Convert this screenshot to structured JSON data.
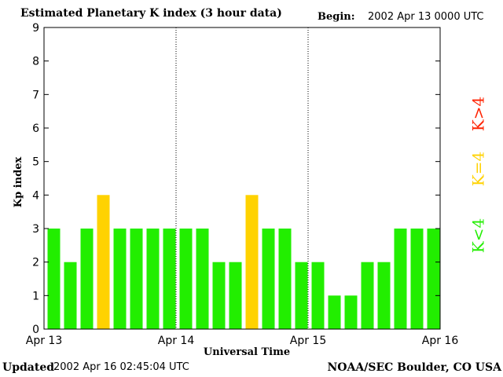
{
  "header": {
    "title": "Estimated Planetary K index (3 hour data)",
    "begin_label": "Begin:",
    "begin_value": "2002 Apr 13 0000 UTC"
  },
  "footer": {
    "updated_label": "Updated",
    "updated_value": "2002 Apr 16 02:45:04 UTC",
    "credit": "NOAA/SEC Boulder, CO USA"
  },
  "legend": [
    {
      "label": "K<4",
      "color": "#22ee00"
    },
    {
      "label": "K=4",
      "color": "#ffd200"
    },
    {
      "label": "K>4",
      "color": "#ff2200"
    }
  ],
  "chart_data": {
    "type": "bar",
    "title": "Estimated Planetary K index (3 hour data)",
    "xlabel": "Universal Time",
    "ylabel": "Kp index",
    "ylim": [
      0,
      9
    ],
    "yticks": [
      0,
      1,
      2,
      3,
      4,
      5,
      6,
      7,
      8,
      9
    ],
    "x_tick_labels": [
      "Apr 13",
      "Apr 14",
      "Apr 15",
      "Apr 16"
    ],
    "day_dividers": true,
    "grid": false,
    "values": [
      3,
      2,
      3,
      4,
      3,
      3,
      3,
      3,
      3,
      3,
      2,
      2,
      4,
      3,
      3,
      2,
      2,
      1,
      1,
      2,
      2,
      3,
      3,
      3
    ],
    "colors": {
      "below": "#22ee00",
      "equal": "#ffd200",
      "above": "#ff2200"
    }
  }
}
